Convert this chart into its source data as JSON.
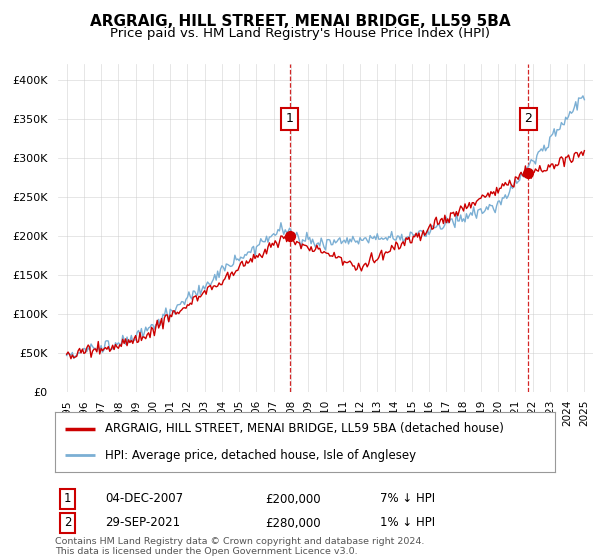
{
  "title": "ARGRAIG, HILL STREET, MENAI BRIDGE, LL59 5BA",
  "subtitle": "Price paid vs. HM Land Registry's House Price Index (HPI)",
  "legend_label_red": "ARGRAIG, HILL STREET, MENAI BRIDGE, LL59 5BA (detached house)",
  "legend_label_blue": "HPI: Average price, detached house, Isle of Anglesey",
  "ann1_date": "04-DEC-2007",
  "ann1_price": "£200,000",
  "ann1_hpi": "7% ↓ HPI",
  "ann1_x": 2007.92,
  "ann1_y": 200000,
  "ann2_date": "29-SEP-2021",
  "ann2_price": "£280,000",
  "ann2_hpi": "1% ↓ HPI",
  "ann2_x": 2021.75,
  "ann2_y": 280000,
  "footer": "Contains HM Land Registry data © Crown copyright and database right 2024.\nThis data is licensed under the Open Government Licence v3.0.",
  "ylim": [
    0,
    420000
  ],
  "yticks": [
    0,
    50000,
    100000,
    150000,
    200000,
    250000,
    300000,
    350000,
    400000
  ],
  "xlim": [
    1994.5,
    2025.5
  ],
  "bg_color": "#ffffff",
  "plot_bg": "#ffffff",
  "red_color": "#cc0000",
  "blue_color": "#7bafd4",
  "grid_color": "#cccccc",
  "ann_box_color": "#cc0000"
}
